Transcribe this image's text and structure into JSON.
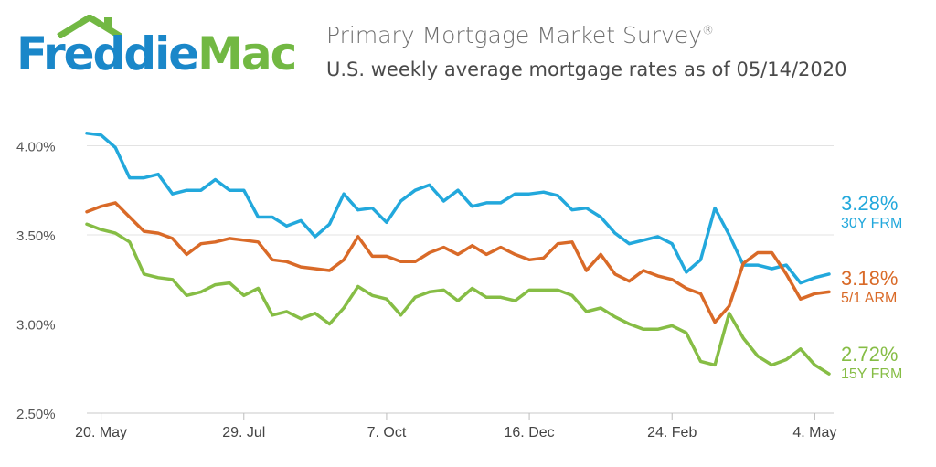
{
  "header": {
    "logo_part1": "Freddie",
    "logo_part2": "Mac",
    "title": "Primary Mortgage Market Survey",
    "title_mark": "®",
    "subtitle": "U.S. weekly average mortgage rates as of 05/14/2020"
  },
  "colors": {
    "frm30": "#22a8dc",
    "arm51": "#d96a28",
    "frm15": "#86bd45",
    "brand_blue": "#1a87c9",
    "brand_green": "#72b843"
  },
  "chart_data": {
    "type": "line",
    "title": "",
    "xlabel": "",
    "ylabel": "",
    "x_tick_labels": [
      "20. May",
      "29. Jul",
      "7. Oct",
      "16. Dec",
      "24. Feb",
      "4. May"
    ],
    "x_tick_index": [
      1,
      11,
      21,
      31,
      41,
      51
    ],
    "y_tick_labels": [
      "2.50%",
      "3.00%",
      "3.50%",
      "4.00%"
    ],
    "y_ticks": [
      2.5,
      3.0,
      3.5,
      4.0
    ],
    "ylim": [
      2.5,
      4.3
    ],
    "grid": true,
    "x": [
      "2019-05-16",
      "2019-05-23",
      "2019-05-30",
      "2019-06-06",
      "2019-06-13",
      "2019-06-20",
      "2019-06-27",
      "2019-07-03",
      "2019-07-11",
      "2019-07-18",
      "2019-07-25",
      "2019-08-01",
      "2019-08-08",
      "2019-08-15",
      "2019-08-22",
      "2019-08-29",
      "2019-09-05",
      "2019-09-12",
      "2019-09-19",
      "2019-09-26",
      "2019-10-03",
      "2019-10-10",
      "2019-10-17",
      "2019-10-24",
      "2019-10-31",
      "2019-11-07",
      "2019-11-14",
      "2019-11-21",
      "2019-11-27",
      "2019-12-05",
      "2019-12-12",
      "2019-12-19",
      "2019-12-26",
      "2020-01-02",
      "2020-01-09",
      "2020-01-16",
      "2020-01-23",
      "2020-01-30",
      "2020-02-06",
      "2020-02-13",
      "2020-02-20",
      "2020-02-27",
      "2020-03-05",
      "2020-03-12",
      "2020-03-19",
      "2020-03-26",
      "2020-04-02",
      "2020-04-09",
      "2020-04-16",
      "2020-04-23",
      "2020-04-30",
      "2020-05-07",
      "2020-05-14"
    ],
    "series": [
      {
        "name": "30Y FRM",
        "end_label": "3.28%",
        "values": [
          4.07,
          4.06,
          3.99,
          3.82,
          3.82,
          3.84,
          3.73,
          3.75,
          3.75,
          3.81,
          3.75,
          3.75,
          3.6,
          3.6,
          3.55,
          3.58,
          3.49,
          3.56,
          3.73,
          3.64,
          3.65,
          3.57,
          3.69,
          3.75,
          3.78,
          3.69,
          3.75,
          3.66,
          3.68,
          3.68,
          3.73,
          3.73,
          3.74,
          3.72,
          3.64,
          3.65,
          3.6,
          3.51,
          3.45,
          3.47,
          3.49,
          3.45,
          3.29,
          3.36,
          3.65,
          3.5,
          3.33,
          3.33,
          3.31,
          3.33,
          3.23,
          3.26,
          3.28
        ]
      },
      {
        "name": "5/1 ARM",
        "end_label": "3.18%",
        "values": [
          3.63,
          3.66,
          3.68,
          3.6,
          3.52,
          3.51,
          3.48,
          3.39,
          3.45,
          3.46,
          3.48,
          3.47,
          3.46,
          3.36,
          3.35,
          3.32,
          3.31,
          3.3,
          3.36,
          3.49,
          3.38,
          3.38,
          3.35,
          3.35,
          3.4,
          3.43,
          3.39,
          3.44,
          3.39,
          3.43,
          3.39,
          3.36,
          3.37,
          3.45,
          3.46,
          3.3,
          3.39,
          3.28,
          3.24,
          3.3,
          3.27,
          3.25,
          3.2,
          3.17,
          3.01,
          3.1,
          3.34,
          3.4,
          3.4,
          3.28,
          3.14,
          3.17,
          3.18
        ]
      },
      {
        "name": "15Y FRM",
        "end_label": "2.72%",
        "values": [
          3.56,
          3.53,
          3.51,
          3.46,
          3.28,
          3.26,
          3.25,
          3.16,
          3.18,
          3.22,
          3.23,
          3.16,
          3.2,
          3.05,
          3.07,
          3.03,
          3.06,
          3.0,
          3.09,
          3.21,
          3.16,
          3.14,
          3.05,
          3.15,
          3.18,
          3.19,
          3.13,
          3.2,
          3.15,
          3.15,
          3.13,
          3.19,
          3.19,
          3.19,
          3.16,
          3.07,
          3.09,
          3.04,
          3.0,
          2.97,
          2.97,
          2.99,
          2.95,
          2.79,
          2.77,
          3.06,
          2.92,
          2.82,
          2.77,
          2.8,
          2.86,
          2.77,
          2.72
        ]
      }
    ]
  }
}
